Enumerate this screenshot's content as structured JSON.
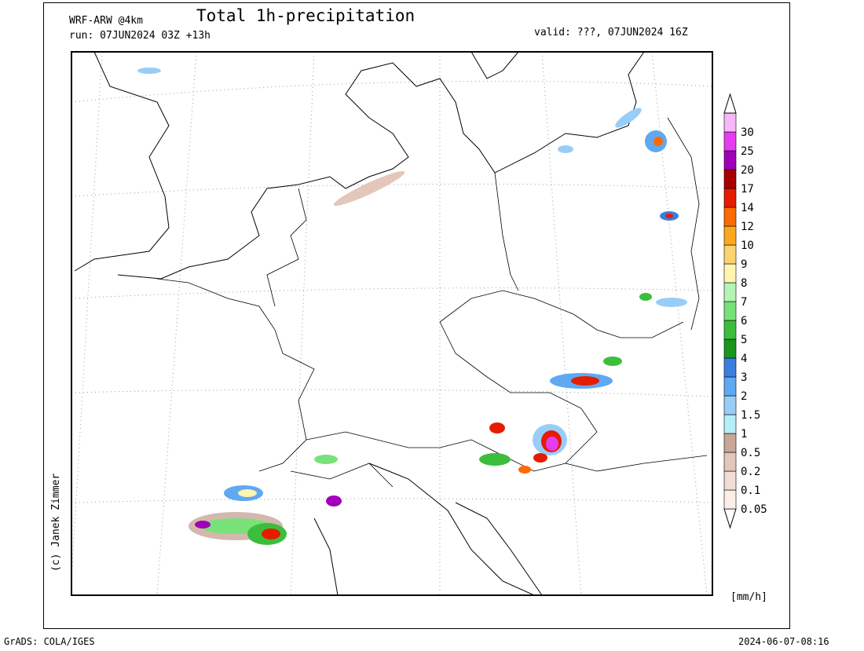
{
  "header": {
    "model": "WRF-ARW @4km",
    "title": "Total 1h-precipitation",
    "run": "run: 07JUN2024 03Z +13h",
    "valid": "valid: ???, 07JUN2024 16Z"
  },
  "credit": "(c) Janek Zimmer",
  "legend": {
    "unit": "[mm/h]",
    "levels": [
      0.05,
      0.1,
      0.2,
      0.5,
      1,
      1.5,
      2,
      3,
      4,
      5,
      6,
      7,
      8,
      9,
      10,
      12,
      14,
      17,
      20,
      25,
      30
    ],
    "colors": [
      "#fbefe7",
      "#f0ddd3",
      "#e3c7bb",
      "#c8a698",
      "#b6eef8",
      "#98cdf8",
      "#5fa8f2",
      "#3a7fe0",
      "#1a961e",
      "#3cbe3c",
      "#78e278",
      "#b4f4b4",
      "#fff4b0",
      "#fbd470",
      "#fba81e",
      "#ff6a00",
      "#e51c00",
      "#a80000",
      "#a000b8",
      "#e83cf0",
      "#f6b8f6"
    ]
  },
  "footer": {
    "left": "GrADS: COLA/IGES",
    "right": "2024-06-07-08:16"
  }
}
